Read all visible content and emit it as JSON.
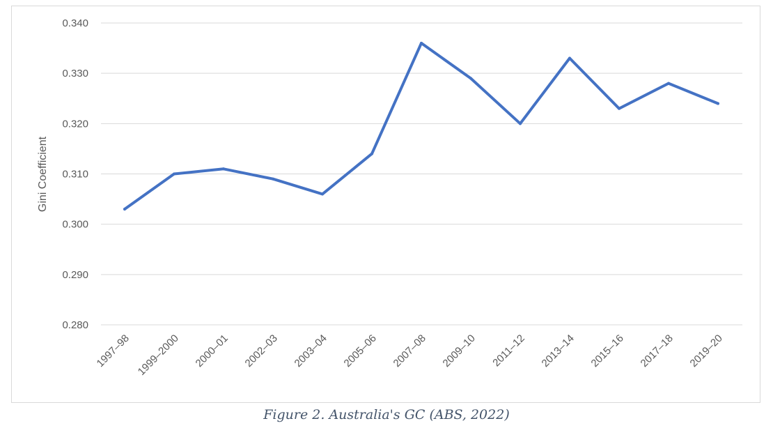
{
  "chart_data": {
    "type": "line",
    "title": "",
    "xlabel": "",
    "ylabel": "Gini Coefficient",
    "categories": [
      "1997–98",
      "1999–2000",
      "2000–01",
      "2002–03",
      "2003–04",
      "2005–06",
      "2007–08",
      "2009–10",
      "2011–12",
      "2013–14",
      "2015–16",
      "2017–18",
      "2019–20"
    ],
    "series": [
      {
        "values": [
          0.303,
          0.31,
          0.311,
          0.309,
          0.306,
          0.314,
          0.336,
          0.329,
          0.32,
          0.333,
          0.323,
          0.328,
          0.324
        ],
        "color": "#4472c4"
      }
    ],
    "ylim": [
      0.28,
      0.34
    ],
    "yticks": [
      "0.340",
      "0.330",
      "0.320",
      "0.310",
      "0.300",
      "0.290",
      "0.280"
    ],
    "grid": true,
    "legend": "none"
  },
  "caption": "Figure 2. Australia's GC (ABS, 2022)"
}
